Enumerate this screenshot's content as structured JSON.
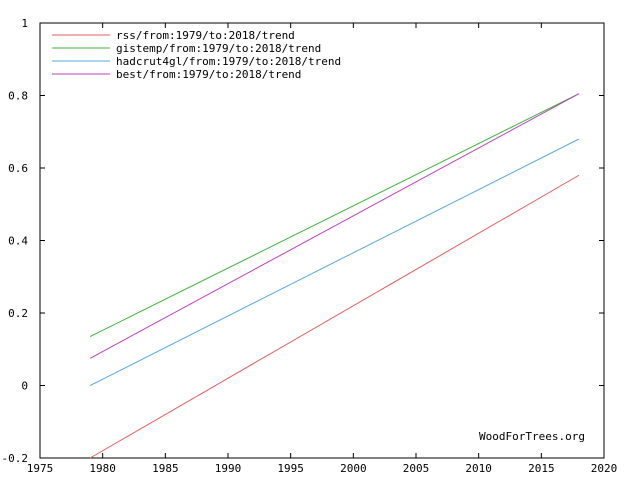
{
  "chart_data": {
    "type": "line",
    "title": "",
    "xlabel": "",
    "ylabel": "",
    "xlim": [
      1975,
      2020
    ],
    "ylim": [
      -0.2,
      1
    ],
    "x_ticks": [
      1975,
      1980,
      1985,
      1990,
      1995,
      2000,
      2005,
      2010,
      2015,
      2020
    ],
    "x_tick_labels": [
      "1975",
      "1980",
      "1985",
      "1990",
      "1995",
      "2000",
      "2005",
      "2010",
      "2015",
      "2020"
    ],
    "y_ticks": [
      -0.2,
      0,
      0.2,
      0.4,
      0.6,
      0.8,
      1
    ],
    "y_tick_labels": [
      "-0.2",
      "0",
      "0.2",
      "0.4",
      "0.6",
      "0.8",
      "1"
    ],
    "grid": false,
    "legend_position": "top-left",
    "series": [
      {
        "name": "rss/from:1979/to:2018/trend",
        "color": "#e06060",
        "x": [
          1979,
          2018
        ],
        "y": [
          -0.2,
          0.58
        ]
      },
      {
        "name": "gistemp/from:1979/to:2018/trend",
        "color": "#40b040",
        "x": [
          1979,
          2018
        ],
        "y": [
          0.135,
          0.805
        ]
      },
      {
        "name": "hadcrut4gl/from:1979/to:2018/trend",
        "color": "#5aa8e0",
        "x": [
          1979,
          2018
        ],
        "y": [
          0.0,
          0.68
        ]
      },
      {
        "name": "best/from:1979/to:2018/trend",
        "color": "#c040c0",
        "x": [
          1979,
          2018
        ],
        "y": [
          0.075,
          0.805
        ]
      }
    ],
    "watermark": "WoodForTrees.org"
  }
}
